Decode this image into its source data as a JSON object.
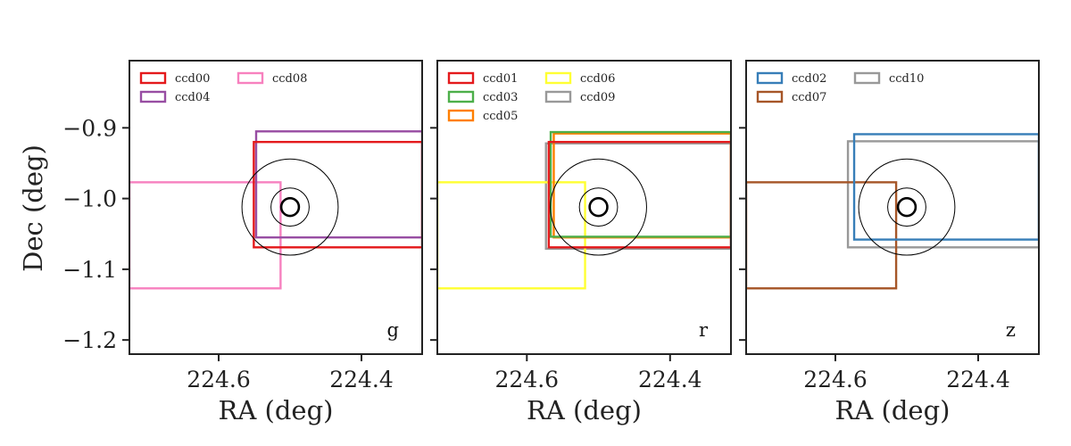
{
  "chart_data": [
    {
      "type": "rectangles",
      "band": "g",
      "xlabel": "RA (deg)",
      "ylabel": "Dec (deg)",
      "xlim": [
        224.725,
        224.315
      ],
      "ylim": [
        -1.22,
        -0.805
      ],
      "xticks": [
        {
          "value": 224.6,
          "label": "224.6"
        },
        {
          "value": 224.4,
          "label": "224.4"
        }
      ],
      "yticks": [
        {
          "value": -0.9,
          "label": "−0.9"
        },
        {
          "value": -1.0,
          "label": "−1.0"
        },
        {
          "value": -1.1,
          "label": "−1.1"
        },
        {
          "value": -1.2,
          "label": "−1.2"
        }
      ],
      "legend_position": "upper-left",
      "legend_columns": 2,
      "target": {
        "ra": 224.5,
        "dec": -1.012,
        "circle_radii_deg": [
          0.068,
          0.027,
          0.0125
        ]
      },
      "series": [
        {
          "name": "ccd00",
          "color": "#e41a1c",
          "ra_min": 224.5508,
          "ra_max": 224.315,
          "dec_min": -1.069,
          "dec_max": -0.92
        },
        {
          "name": "ccd04",
          "color": "#984ea3",
          "ra_min": 224.5475,
          "ra_max": 224.315,
          "dec_min": -1.055,
          "dec_max": -0.905
        },
        {
          "name": "ccd08",
          "color": "#f781bf",
          "ra_min": 224.725,
          "ra_max": 224.5133,
          "dec_min": -1.127,
          "dec_max": -0.977
        }
      ]
    },
    {
      "type": "rectangles",
      "band": "r",
      "xlabel": "RA (deg)",
      "ylabel": "",
      "xlim": [
        224.725,
        224.315
      ],
      "ylim": [
        -1.22,
        -0.805
      ],
      "xticks": [
        {
          "value": 224.6,
          "label": "224.6"
        },
        {
          "value": 224.4,
          "label": "224.4"
        }
      ],
      "yticks": [],
      "legend_position": "upper-left",
      "legend_columns": 2,
      "target": {
        "ra": 224.5,
        "dec": -1.012,
        "circle_radii_deg": [
          0.068,
          0.027,
          0.0125
        ]
      },
      "series": [
        {
          "name": "ccd01",
          "color": "#e41a1c",
          "ra_min": 224.5694,
          "ra_max": 224.315,
          "dec_min": -1.069,
          "dec_max": -0.92
        },
        {
          "name": "ccd03",
          "color": "#4daf4a",
          "ra_min": 224.5667,
          "ra_max": 224.315,
          "dec_min": -1.054,
          "dec_max": -0.906
        },
        {
          "name": "ccd05",
          "color": "#ff7f00",
          "ra_min": 224.5624,
          "ra_max": 224.315,
          "dec_min": -1.055,
          "dec_max": -0.908
        },
        {
          "name": "ccd06",
          "color": "#ffff33",
          "ra_min": 224.725,
          "ra_max": 224.5187,
          "dec_min": -1.127,
          "dec_max": -0.977
        },
        {
          "name": "ccd09",
          "color": "#999999",
          "ra_min": 224.5733,
          "ra_max": 224.315,
          "dec_min": -1.071,
          "dec_max": -0.922
        }
      ]
    },
    {
      "type": "rectangles",
      "band": "z",
      "xlabel": "RA (deg)",
      "ylabel": "",
      "xlim": [
        224.725,
        224.315
      ],
      "ylim": [
        -1.22,
        -0.805
      ],
      "xticks": [
        {
          "value": 224.6,
          "label": "224.6"
        },
        {
          "value": 224.4,
          "label": "224.4"
        }
      ],
      "yticks": [],
      "legend_position": "upper-left",
      "legend_columns": 2,
      "target": {
        "ra": 224.5,
        "dec": -1.012,
        "circle_radii_deg": [
          0.068,
          0.027,
          0.0125
        ]
      },
      "series": [
        {
          "name": "ccd02",
          "color": "#377eb8",
          "ra_min": 224.5737,
          "ra_max": 224.315,
          "dec_min": -1.058,
          "dec_max": -0.909
        },
        {
          "name": "ccd07",
          "color": "#a65628",
          "ra_min": 224.725,
          "ra_max": 224.5149,
          "dec_min": -1.127,
          "dec_max": -0.977
        },
        {
          "name": "ccd10",
          "color": "#999999",
          "ra_min": 224.5824,
          "ra_max": 224.315,
          "dec_min": -1.069,
          "dec_max": -0.919
        }
      ]
    }
  ]
}
